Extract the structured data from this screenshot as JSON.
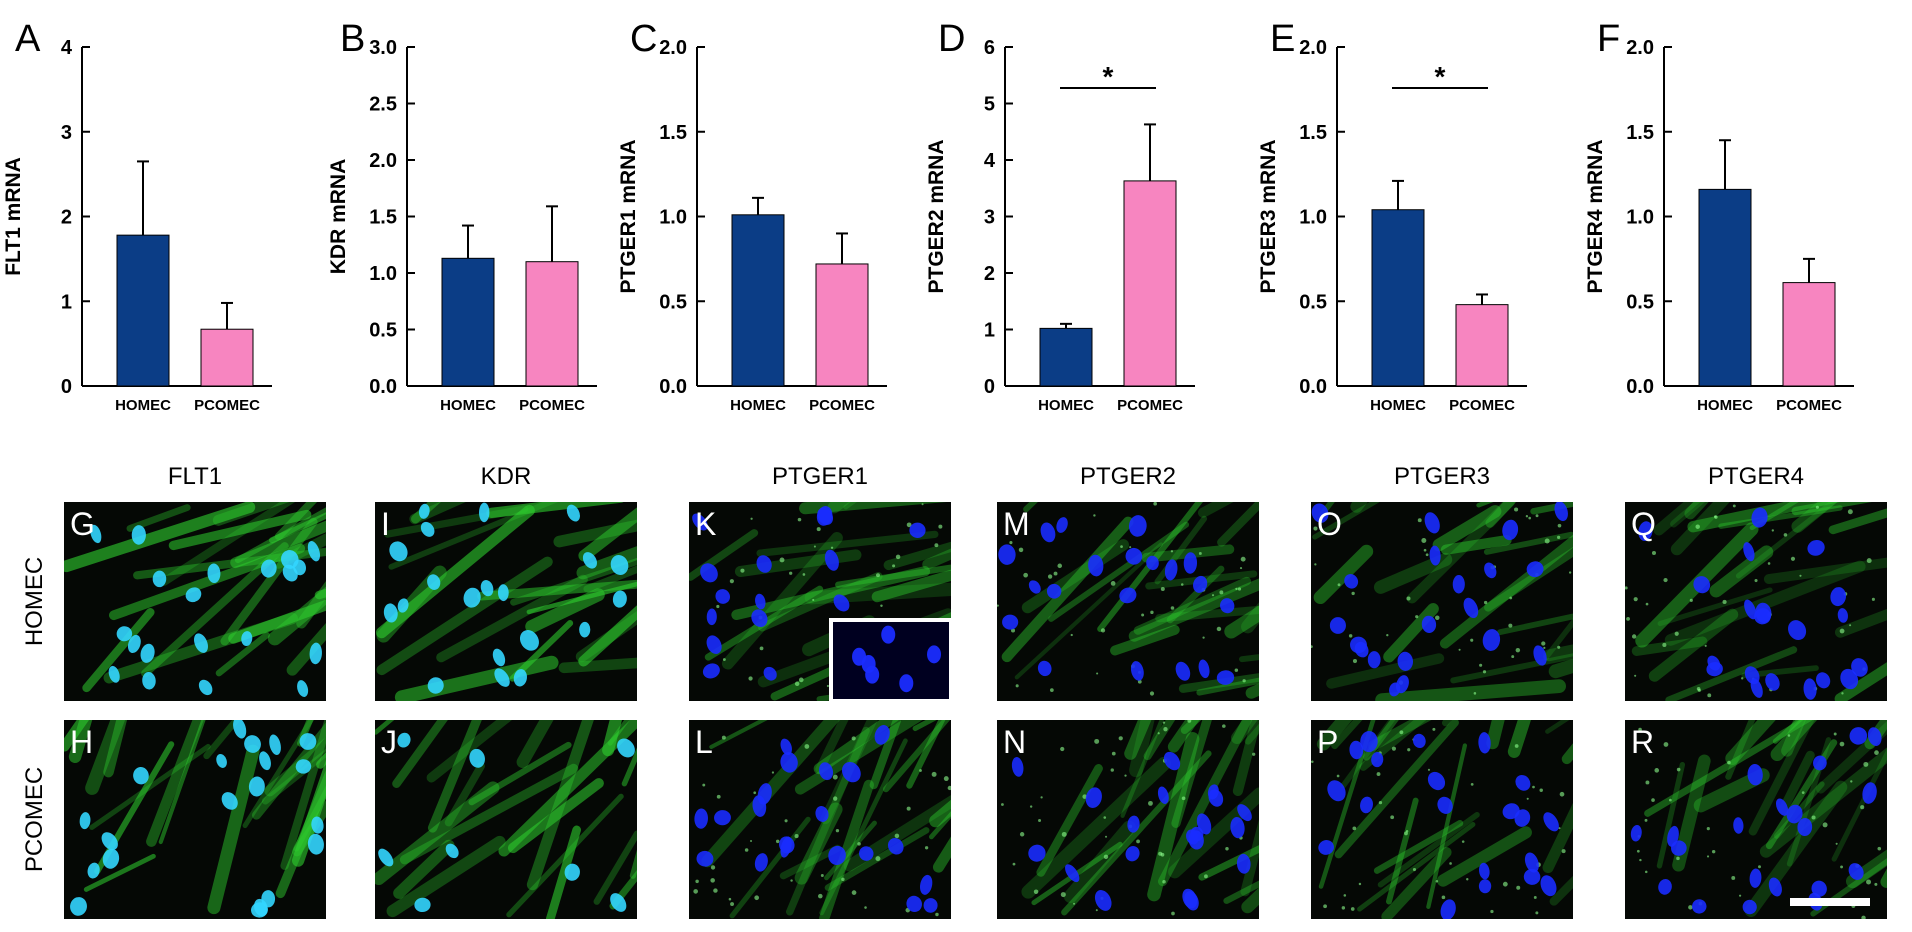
{
  "colors": {
    "homec": "#0b3d86",
    "pcomec": "#f785c0",
    "axis": "#000000",
    "nucleus": "#1a2cff",
    "nucleus_cyan": "#33d6ff",
    "stain": "#2fd02f",
    "scale_bar": "#ffffff"
  },
  "chart_data": [
    {
      "panel": "A",
      "type": "bar",
      "ylabel": "FLT1 mRNA",
      "categories": [
        "HOMEC",
        "PCOMEC"
      ],
      "values": [
        1.78,
        0.67
      ],
      "errors": [
        0.87,
        0.31
      ],
      "ylim": [
        0,
        4
      ],
      "yticks": [
        "0",
        "1",
        "2",
        "3",
        "4"
      ],
      "significance": ""
    },
    {
      "panel": "B",
      "type": "bar",
      "ylabel": "KDR mRNA",
      "categories": [
        "HOMEC",
        "PCOMEC"
      ],
      "values": [
        1.13,
        1.1
      ],
      "errors": [
        0.29,
        0.49
      ],
      "ylim": [
        0,
        3
      ],
      "yticks": [
        "0.0",
        "0.5",
        "1.0",
        "1.5",
        "2.0",
        "2.5",
        "3.0"
      ],
      "significance": ""
    },
    {
      "panel": "C",
      "type": "bar",
      "ylabel": "PTGER1 mRNA",
      "categories": [
        "HOMEC",
        "PCOMEC"
      ],
      "values": [
        1.01,
        0.72
      ],
      "errors": [
        0.1,
        0.18
      ],
      "ylim": [
        0,
        2
      ],
      "yticks": [
        "0.0",
        "0.5",
        "1.0",
        "1.5",
        "2.0"
      ],
      "significance": ""
    },
    {
      "panel": "D",
      "type": "bar",
      "ylabel": "PTGER2 mRNA",
      "categories": [
        "HOMEC",
        "PCOMEC"
      ],
      "values": [
        1.02,
        3.63
      ],
      "errors": [
        0.08,
        1.0
      ],
      "ylim": [
        0,
        6
      ],
      "yticks": [
        "0",
        "1",
        "2",
        "3",
        "4",
        "5",
        "6"
      ],
      "significance": "*"
    },
    {
      "panel": "E",
      "type": "bar",
      "ylabel": "PTGER3 mRNA",
      "categories": [
        "HOMEC",
        "PCOMEC"
      ],
      "values": [
        1.04,
        0.48
      ],
      "errors": [
        0.17,
        0.06
      ],
      "ylim": [
        0,
        2
      ],
      "yticks": [
        "0.0",
        "0.5",
        "1.0",
        "1.5",
        "2.0"
      ],
      "significance": "*"
    },
    {
      "panel": "F",
      "type": "bar",
      "ylabel": "PTGER4 mRNA",
      "categories": [
        "HOMEC",
        "PCOMEC"
      ],
      "values": [
        1.16,
        0.61
      ],
      "errors": [
        0.29,
        0.14
      ],
      "ylim": [
        0,
        2
      ],
      "yticks": [
        "0.0",
        "0.5",
        "1.0",
        "1.5",
        "2.0"
      ],
      "significance": ""
    }
  ],
  "micrographs": {
    "columns": [
      "FLT1",
      "KDR",
      "PTGER1",
      "PTGER2",
      "PTGER3",
      "PTGER4"
    ],
    "rows": [
      "HOMEC",
      "PCOMEC"
    ],
    "panel_letters": [
      [
        "G",
        "I",
        "K",
        "M",
        "O",
        "Q"
      ],
      [
        "H",
        "J",
        "L",
        "N",
        "P",
        "R"
      ]
    ]
  }
}
